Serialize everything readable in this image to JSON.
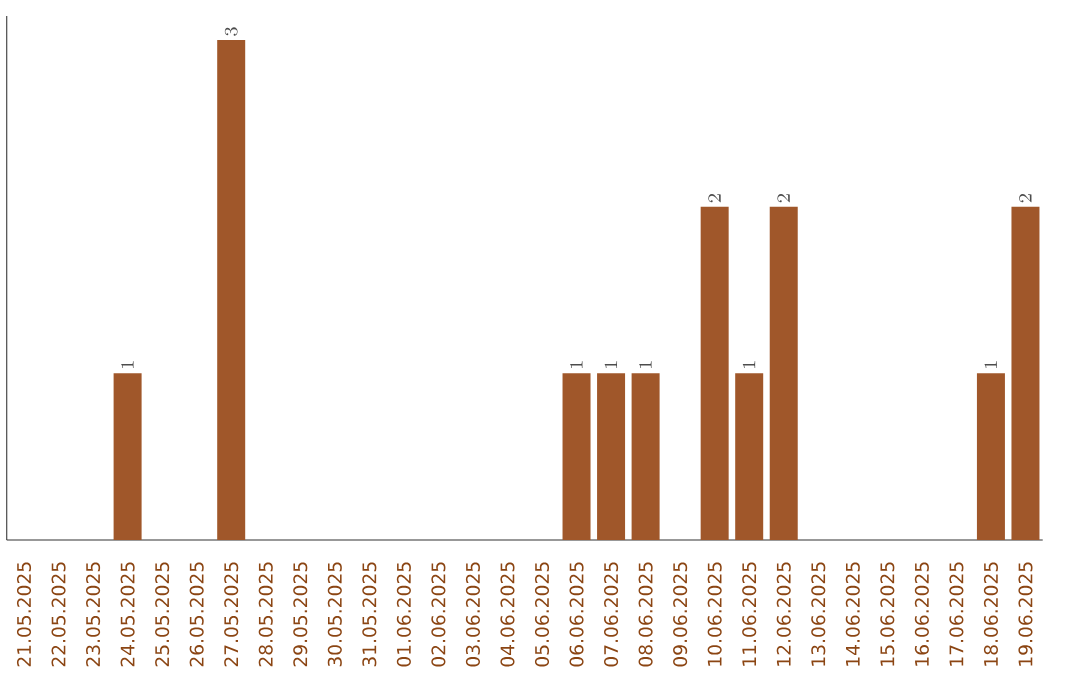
{
  "chart_data": {
    "type": "bar",
    "categories": [
      "21.05.2025",
      "22.05.2025",
      "23.05.2025",
      "24.05.2025",
      "25.05.2025",
      "26.05.2025",
      "27.05.2025",
      "28.05.2025",
      "29.05.2025",
      "30.05.2025",
      "31.05.2025",
      "01.06.2025",
      "02.06.2025",
      "03.06.2025",
      "04.06.2025",
      "05.06.2025",
      "06.06.2025",
      "07.06.2025",
      "08.06.2025",
      "09.06.2025",
      "10.06.2025",
      "11.06.2025",
      "12.06.2025",
      "13.06.2025",
      "14.06.2025",
      "15.06.2025",
      "16.06.2025",
      "17.06.2025",
      "18.06.2025",
      "19.06.2025"
    ],
    "values": [
      null,
      null,
      null,
      1,
      null,
      null,
      3,
      null,
      null,
      null,
      null,
      null,
      null,
      null,
      null,
      null,
      1,
      1,
      1,
      null,
      2,
      1,
      2,
      null,
      null,
      null,
      null,
      null,
      1,
      2
    ],
    "color": "#a0572a",
    "data_labels": true
  }
}
